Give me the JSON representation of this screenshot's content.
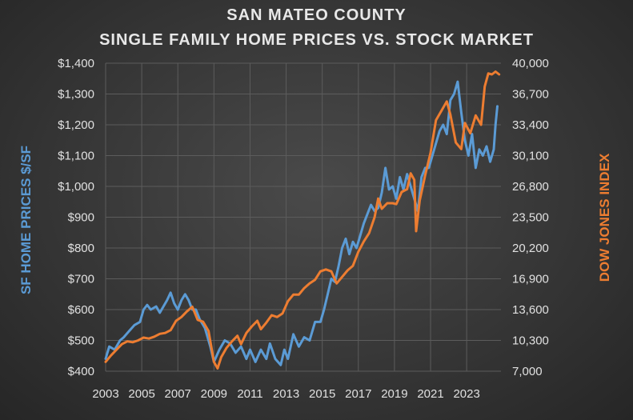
{
  "chart_data": {
    "type": "line",
    "title": [
      "SAN MATEO COUNTY",
      "SINGLE FAMILY HOME PRICES VS. STOCK MARKET"
    ],
    "xlabel": "",
    "ylabel_left": "SF HOME PRICES $/SF",
    "ylabel_right": "DOW JONES INDEX",
    "x_ticks": [
      "2003",
      "2005",
      "2007",
      "2009",
      "2011",
      "2013",
      "2015",
      "2017",
      "2019",
      "2021",
      "2023"
    ],
    "x_range": [
      2003,
      2024.9
    ],
    "y_left_ticks": [
      "$400",
      "$500",
      "$600",
      "$700",
      "$800",
      "$900",
      "$1,000",
      "$1,100",
      "$1,200",
      "$1,300",
      "$1,400"
    ],
    "y_left_range": [
      400,
      1400
    ],
    "y_right_ticks": [
      "7,000",
      "10,300",
      "13,600",
      "16,900",
      "20,200",
      "23,500",
      "26,800",
      "30,100",
      "33,400",
      "36,700",
      "40,000"
    ],
    "y_right_range": [
      7000,
      40000
    ],
    "grid": true,
    "colors": {
      "home": "#5b9bd5",
      "dow": "#ed7d31",
      "grid": "#5c5c5c",
      "tick": "#e0e0e0"
    },
    "series": [
      {
        "name": "SF Home Prices $/SF",
        "axis": "left",
        "x": [
          2003.0,
          2003.2,
          2003.5,
          2003.8,
          2004.0,
          2004.3,
          2004.6,
          2004.9,
          2005.1,
          2005.3,
          2005.5,
          2005.8,
          2006.0,
          2006.2,
          2006.4,
          2006.6,
          2006.8,
          2007.0,
          2007.2,
          2007.4,
          2007.6,
          2007.8,
          2008.0,
          2008.2,
          2008.5,
          2008.8,
          2009.0,
          2009.3,
          2009.6,
          2009.9,
          2010.2,
          2010.5,
          2010.8,
          2011.0,
          2011.3,
          2011.6,
          2011.9,
          2012.1,
          2012.4,
          2012.7,
          2012.9,
          2013.1,
          2013.4,
          2013.7,
          2014.0,
          2014.3,
          2014.6,
          2014.9,
          2015.1,
          2015.3,
          2015.5,
          2015.7,
          2015.9,
          2016.1,
          2016.3,
          2016.5,
          2016.7,
          2016.9,
          2017.1,
          2017.3,
          2017.5,
          2017.7,
          2017.9,
          2018.1,
          2018.3,
          2018.5,
          2018.7,
          2018.9,
          2019.1,
          2019.3,
          2019.5,
          2019.7,
          2019.9,
          2020.1,
          2020.3,
          2020.5,
          2020.7,
          2020.9,
          2021.1,
          2021.3,
          2021.5,
          2021.7,
          2021.9,
          2022.1,
          2022.3,
          2022.5,
          2022.7,
          2022.9,
          2023.1,
          2023.3,
          2023.5,
          2023.7,
          2023.9,
          2024.1,
          2024.3,
          2024.5,
          2024.6,
          2024.7
        ],
        "values": [
          440,
          480,
          470,
          500,
          510,
          530,
          550,
          560,
          600,
          615,
          600,
          610,
          590,
          610,
          630,
          655,
          620,
          600,
          630,
          650,
          630,
          600,
          600,
          570,
          540,
          480,
          430,
          470,
          500,
          490,
          460,
          480,
          440,
          470,
          430,
          470,
          440,
          490,
          440,
          420,
          470,
          440,
          520,
          480,
          510,
          500,
          560,
          560,
          600,
          650,
          700,
          690,
          740,
          800,
          830,
          780,
          820,
          800,
          840,
          880,
          910,
          940,
          920,
          930,
          980,
          1060,
          990,
          1000,
          960,
          1030,
          990,
          1040,
          1000,
          960,
          920,
          1030,
          1060,
          1060,
          1100,
          1140,
          1180,
          1200,
          1170,
          1280,
          1300,
          1340,
          1240,
          1150,
          1100,
          1170,
          1060,
          1120,
          1100,
          1130,
          1080,
          1120,
          1200,
          1260
        ]
      },
      {
        "name": "Dow Jones Index",
        "axis": "right",
        "x": [
          2003.0,
          2003.3,
          2003.6,
          2003.9,
          2004.2,
          2004.5,
          2004.8,
          2005.1,
          2005.4,
          2005.7,
          2006.0,
          2006.3,
          2006.6,
          2006.9,
          2007.2,
          2007.5,
          2007.8,
          2008.1,
          2008.4,
          2008.7,
          2008.9,
          2009.0,
          2009.2,
          2009.4,
          2009.7,
          2010.0,
          2010.3,
          2010.5,
          2010.8,
          2011.1,
          2011.4,
          2011.6,
          2011.9,
          2012.2,
          2012.5,
          2012.8,
          2013.1,
          2013.4,
          2013.7,
          2014.0,
          2014.3,
          2014.6,
          2014.9,
          2015.2,
          2015.5,
          2015.8,
          2016.1,
          2016.4,
          2016.7,
          2017.0,
          2017.3,
          2017.6,
          2017.9,
          2018.1,
          2018.3,
          2018.6,
          2018.9,
          2019.1,
          2019.4,
          2019.7,
          2019.9,
          2020.1,
          2020.2,
          2020.4,
          2020.7,
          2021.0,
          2021.3,
          2021.6,
          2021.9,
          2022.1,
          2022.4,
          2022.7,
          2022.9,
          2023.2,
          2023.5,
          2023.8,
          2024.0,
          2024.2,
          2024.4,
          2024.6,
          2024.8
        ],
        "values": [
          8000,
          8700,
          9300,
          9900,
          10200,
          10100,
          10300,
          10600,
          10500,
          10700,
          11000,
          11100,
          11400,
          12400,
          12800,
          13400,
          13900,
          12500,
          12300,
          11300,
          9100,
          8000,
          7300,
          8500,
          9500,
          10200,
          10800,
          9900,
          11100,
          11800,
          12400,
          11500,
          12200,
          13000,
          12800,
          13200,
          14500,
          15200,
          15200,
          15900,
          16400,
          16800,
          17700,
          17900,
          17700,
          16400,
          17100,
          17800,
          18300,
          19800,
          20900,
          21800,
          23500,
          25500,
          24400,
          25000,
          25000,
          24900,
          26200,
          26500,
          28200,
          27500,
          22000,
          25300,
          28000,
          30400,
          33900,
          34900,
          35900,
          34500,
          31500,
          30800,
          33600,
          32500,
          34400,
          33400,
          37500,
          38900,
          38800,
          39100,
          38800
        ]
      }
    ]
  }
}
